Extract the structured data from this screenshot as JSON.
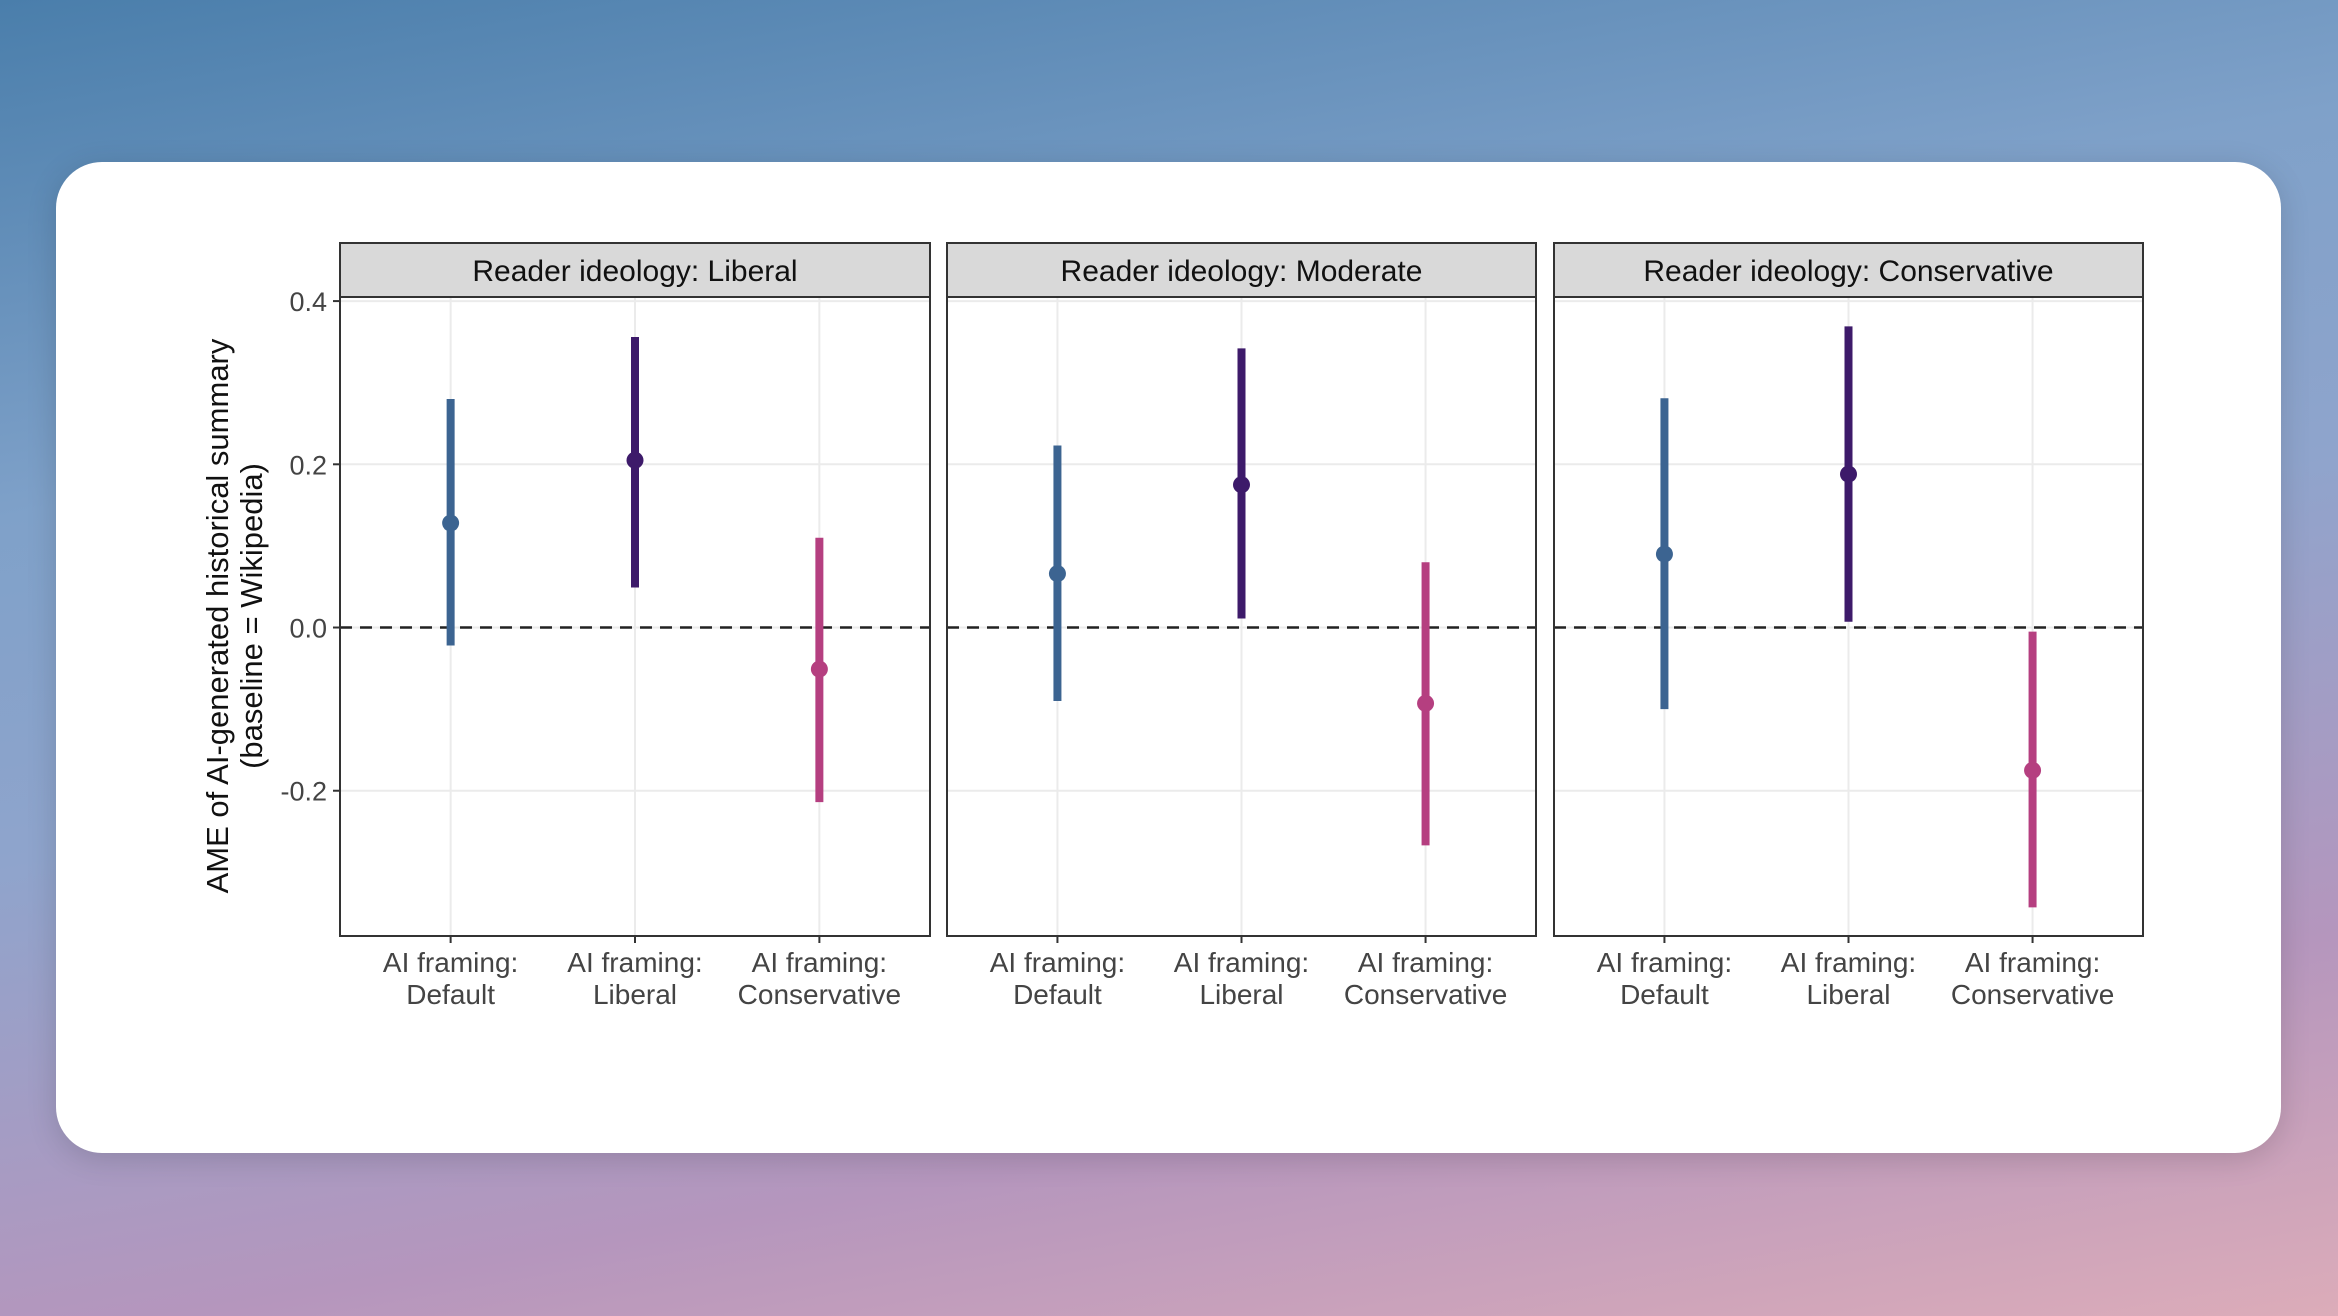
{
  "chart_data": {
    "type": "errorbar",
    "ylabel": "AME of AI-generated historical summary",
    "ylabel2": "(baseline = Wikipedia)",
    "ylim": [
      -0.378,
      0.405
    ],
    "yticks": [
      "0.4",
      "0.2",
      "0.0",
      "-0.2"
    ],
    "ytick_values": [
      0.4,
      0.2,
      0.0,
      -0.2
    ],
    "reference_line": 0.0,
    "grid": true,
    "categories": [
      {
        "line1": "AI framing:",
        "line2": "Default",
        "color": "#3c6491"
      },
      {
        "line1": "AI framing:",
        "line2": "Liberal",
        "color": "#3d1a6a"
      },
      {
        "line1": "AI framing:",
        "line2": "Conservative",
        "color": "#b53f80"
      }
    ],
    "panels": [
      {
        "title": "Reader ideology: Liberal",
        "points": [
          {
            "estimate": 0.128,
            "lower": -0.022,
            "upper": 0.28
          },
          {
            "estimate": 0.205,
            "lower": 0.049,
            "upper": 0.356
          },
          {
            "estimate": -0.051,
            "lower": -0.214,
            "upper": 0.11
          }
        ]
      },
      {
        "title": "Reader ideology: Moderate",
        "points": [
          {
            "estimate": 0.066,
            "lower": -0.09,
            "upper": 0.223
          },
          {
            "estimate": 0.175,
            "lower": 0.011,
            "upper": 0.342
          },
          {
            "estimate": -0.093,
            "lower": -0.267,
            "upper": 0.08
          }
        ]
      },
      {
        "title": "Reader ideology: Conservative",
        "points": [
          {
            "estimate": 0.09,
            "lower": -0.1,
            "upper": 0.281
          },
          {
            "estimate": 0.188,
            "lower": 0.007,
            "upper": 0.369
          },
          {
            "estimate": -0.175,
            "lower": -0.343,
            "upper": -0.005
          }
        ]
      }
    ]
  }
}
